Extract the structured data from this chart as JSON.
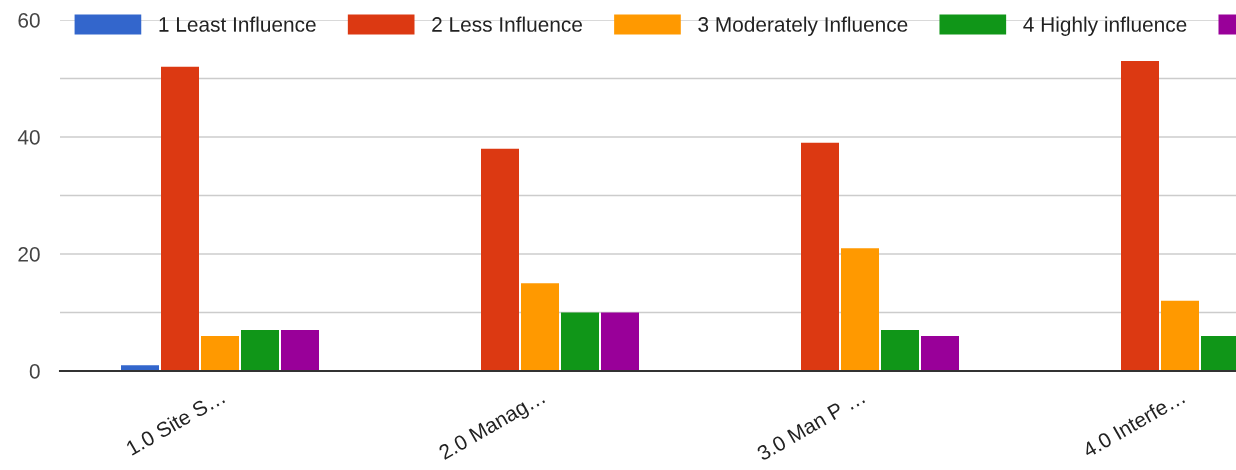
{
  "chart_data": {
    "type": "bar",
    "categories": [
      "1.0 Site S…",
      "2.0 Manag…",
      "3.0 Man P …",
      "4.0 Interfe…"
    ],
    "series": [
      {
        "name": "1 Least Influence",
        "color": "#3366cc",
        "values": [
          1,
          0,
          0,
          0
        ]
      },
      {
        "name": "2 Less Influence",
        "color": "#dc3912",
        "values": [
          52,
          38,
          39,
          53
        ]
      },
      {
        "name": "3 Moderately Influence",
        "color": "#ff9900",
        "values": [
          6,
          15,
          21,
          12
        ]
      },
      {
        "name": "4 Highly influence",
        "color": "#109618",
        "values": [
          7,
          10,
          7,
          6
        ]
      },
      {
        "color": "#990099",
        "values": [
          7,
          10,
          6,
          null
        ]
      }
    ],
    "ylim": [
      0,
      60
    ],
    "yticks": [
      0,
      {
        "value": 10,
        "label": null
      },
      20,
      {
        "value": 30,
        "label": null
      },
      40,
      {
        "value": 50,
        "label": null
      },
      60
    ],
    "grid": "y",
    "legend": "top"
  }
}
